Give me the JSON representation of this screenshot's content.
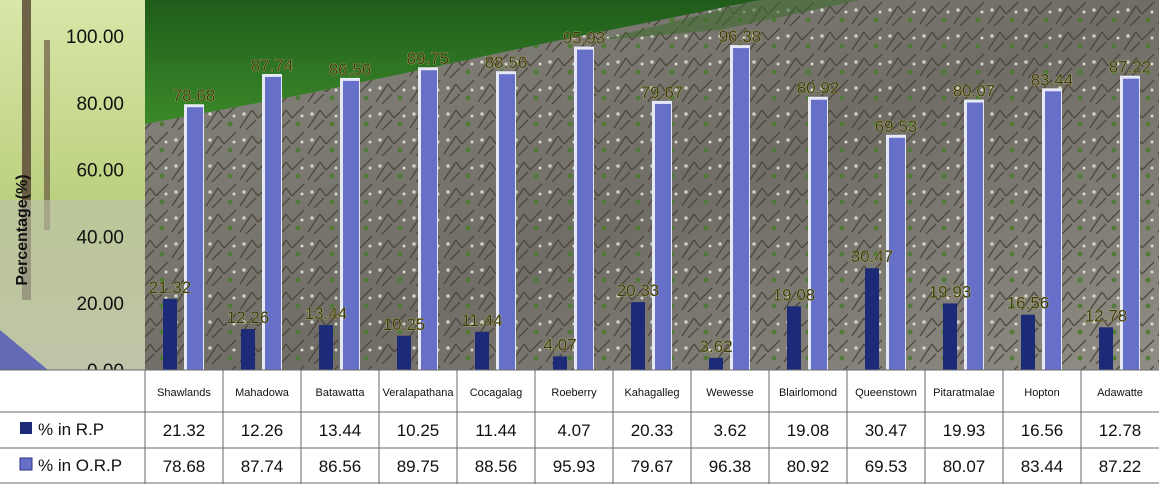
{
  "chart_data": {
    "type": "bar",
    "ylabel": "Percentage(%)",
    "ylim": [
      0,
      100
    ],
    "yticks": [
      "0.00",
      "20.00",
      "40.00",
      "60.00",
      "80.00",
      "100.00"
    ],
    "categories": [
      "Shawlands",
      "Mahadowa",
      "Batawatta",
      "Veralapathana",
      "Cocagalag",
      "Roeberry",
      "Kahagalleg",
      "Wewesse",
      "Blairlomond",
      "Queenstown",
      "Pitaratmalae",
      "Hopton",
      "Adawatte"
    ],
    "series": [
      {
        "name": "% in R.P",
        "values": [
          21.32,
          12.26,
          13.44,
          10.25,
          11.44,
          4.07,
          20.33,
          3.62,
          19.08,
          30.47,
          19.93,
          16.56,
          12.78
        ],
        "color": "#1c2a78"
      },
      {
        "name": "% in O.R.P",
        "values": [
          78.68,
          87.74,
          86.56,
          89.75,
          88.56,
          95.93,
          79.67,
          96.38,
          80.92,
          69.53,
          80.07,
          83.44,
          87.22
        ],
        "color": "#6670c8"
      }
    ],
    "data_table": true,
    "legend": "data-table-rows",
    "grid": false
  }
}
